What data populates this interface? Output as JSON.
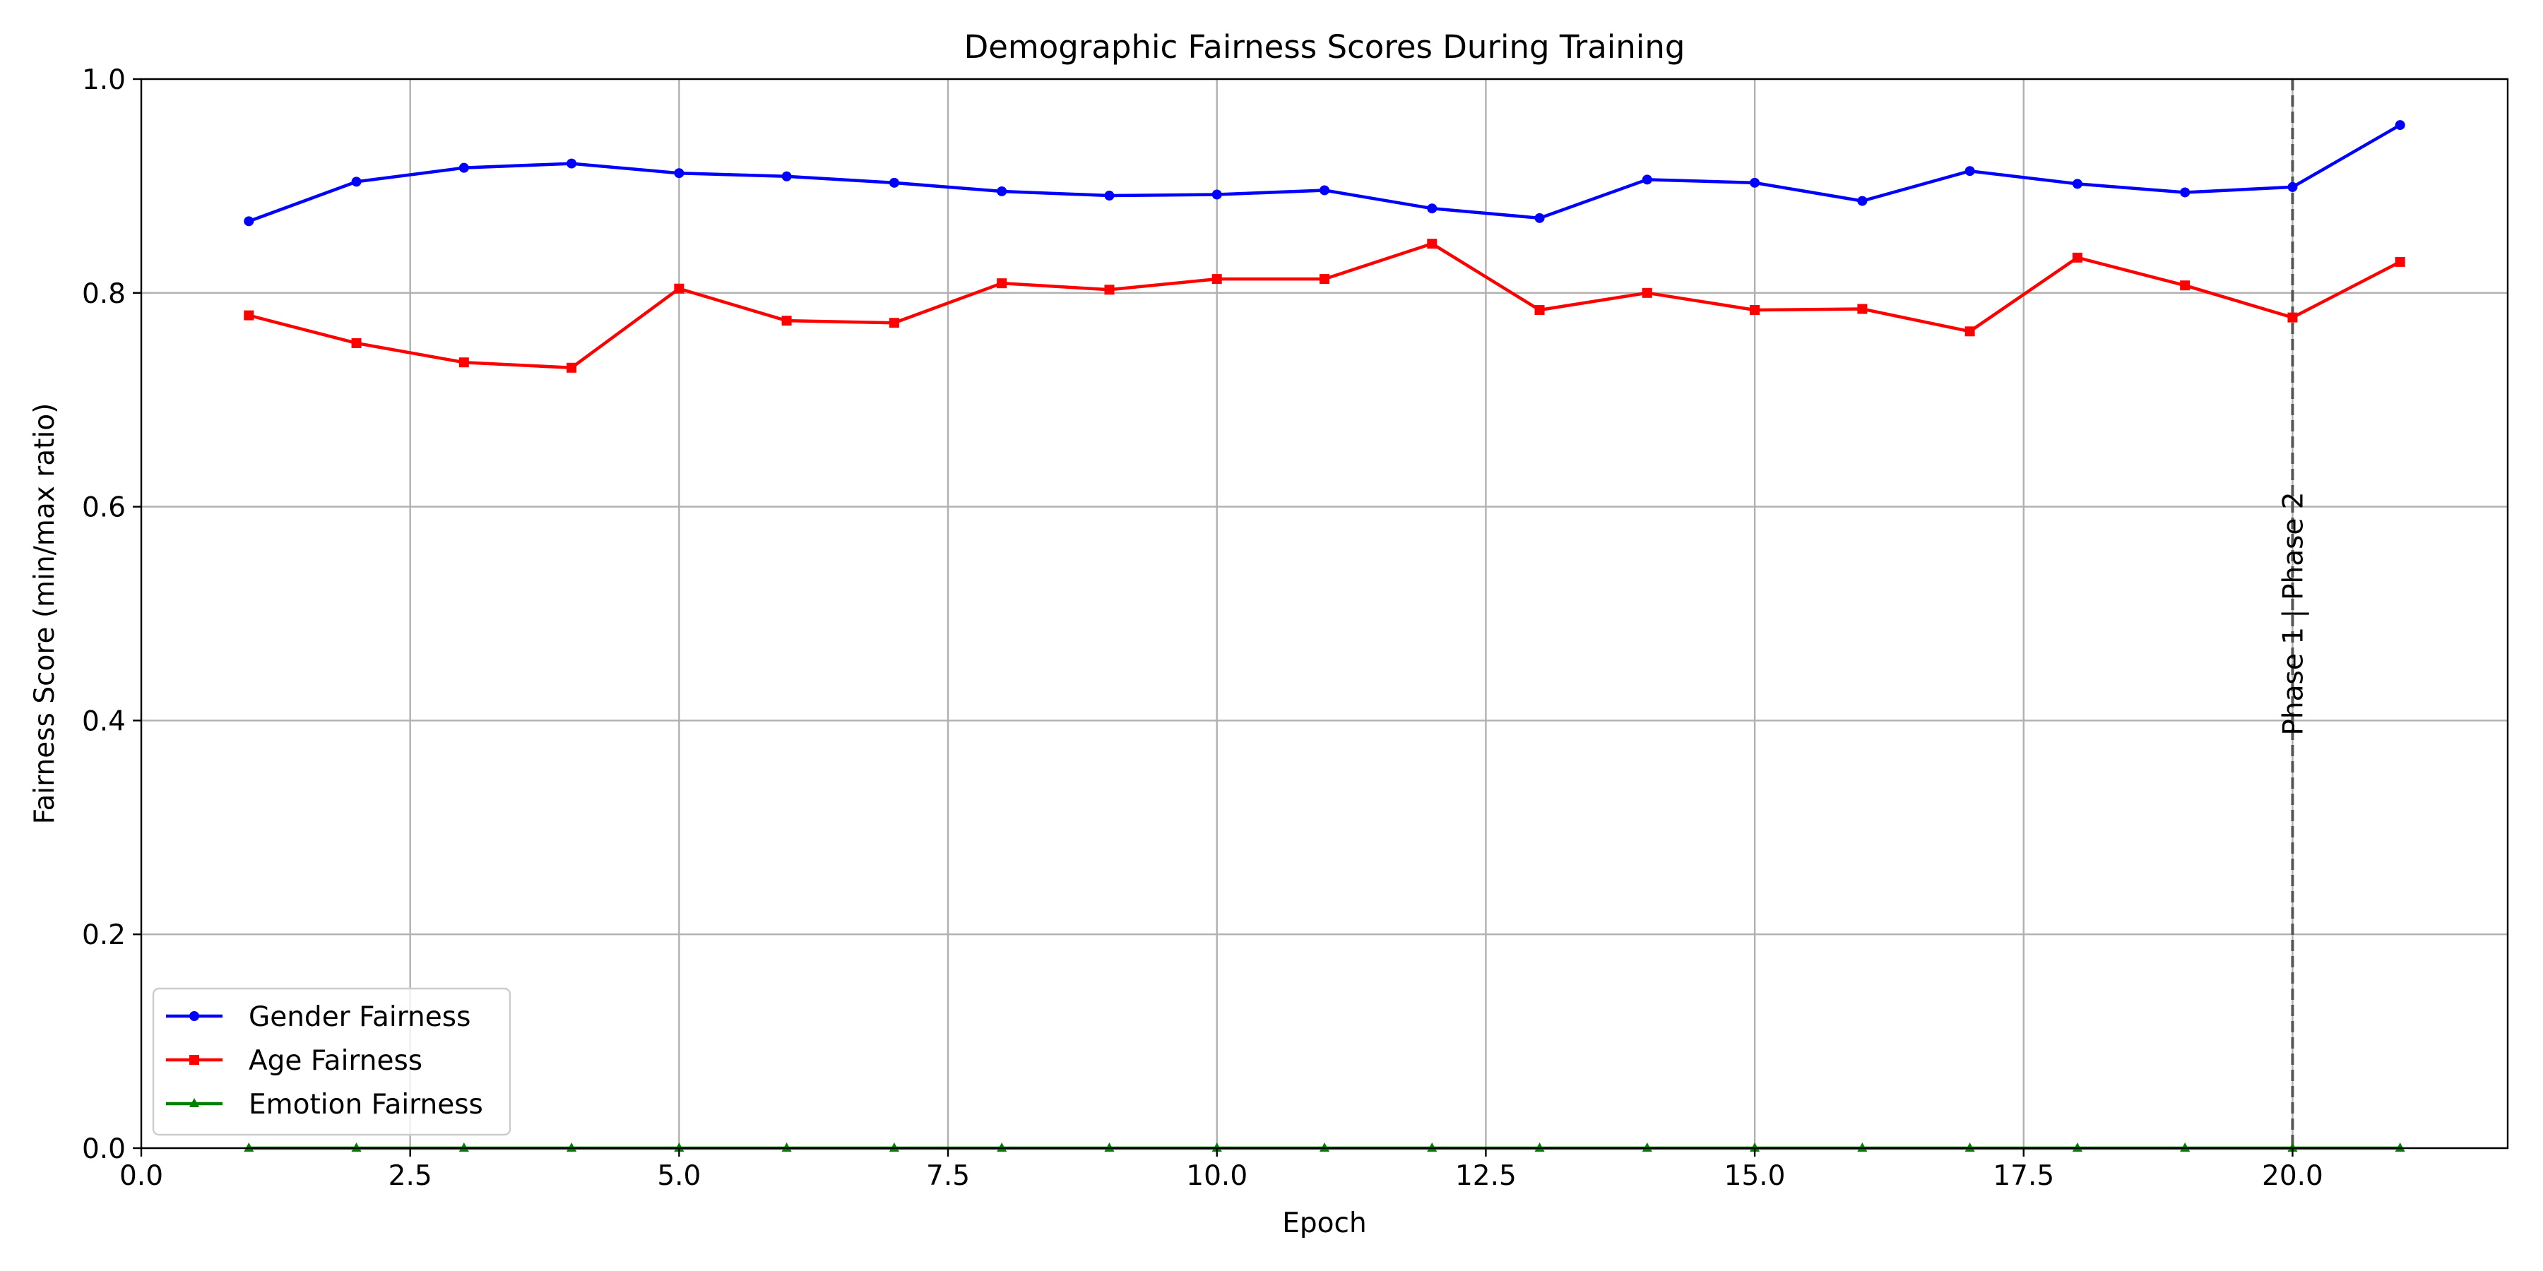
{
  "chart_data": {
    "type": "line",
    "title": "Demographic Fairness Scores During Training",
    "xlabel": "Epoch",
    "ylabel": "Fairness Score (min/max ratio)",
    "xlim": [
      0,
      22
    ],
    "ylim": [
      0,
      1.0
    ],
    "x_ticks": [
      0,
      2.5,
      5,
      7.5,
      10,
      12.5,
      15,
      17.5,
      20
    ],
    "x_tick_labels": [
      "0.0",
      "2.5",
      "5.0",
      "7.5",
      "10.0",
      "12.5",
      "15.0",
      "17.5",
      "20.0"
    ],
    "y_ticks": [
      0,
      0.2,
      0.4,
      0.6,
      0.8,
      1.0
    ],
    "y_tick_labels": [
      "0.0",
      "0.2",
      "0.4",
      "0.6",
      "0.8",
      "1.0"
    ],
    "grid": true,
    "legend_position": "lower-left",
    "x": [
      1,
      2,
      3,
      4,
      5,
      6,
      7,
      8,
      9,
      10,
      11,
      12,
      13,
      14,
      15,
      16,
      17,
      18,
      19,
      20,
      21
    ],
    "series": [
      {
        "name": "Gender Fairness",
        "color": "#0000ff",
        "marker": "circle",
        "values": [
          0.867,
          0.904,
          0.917,
          0.921,
          0.912,
          0.909,
          0.903,
          0.895,
          0.891,
          0.892,
          0.896,
          0.879,
          0.87,
          0.906,
          0.903,
          0.886,
          0.914,
          0.902,
          0.894,
          0.899,
          0.957
        ]
      },
      {
        "name": "Age Fairness",
        "color": "#ff0000",
        "marker": "square",
        "values": [
          0.779,
          0.753,
          0.735,
          0.73,
          0.804,
          0.774,
          0.772,
          0.809,
          0.803,
          0.813,
          0.813,
          0.846,
          0.784,
          0.8,
          0.784,
          0.785,
          0.764,
          0.833,
          0.807,
          0.777,
          0.829
        ]
      },
      {
        "name": "Emotion Fairness",
        "color": "#008000",
        "marker": "triangle",
        "values": [
          0,
          0,
          0,
          0,
          0,
          0,
          0,
          0,
          0,
          0,
          0,
          0,
          0,
          0,
          0,
          0,
          0,
          0,
          0,
          0,
          0
        ]
      }
    ],
    "annotations": [
      {
        "type": "vline",
        "x": 20,
        "style": "dashed",
        "color": "#555555",
        "label": "Phase 1 | Phase 2",
        "label_y": 0.5
      }
    ]
  }
}
